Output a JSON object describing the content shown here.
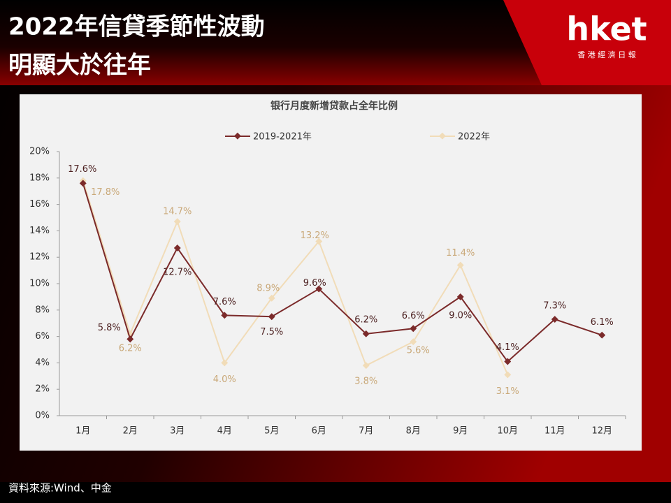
{
  "header": {
    "title_lines": [
      "2022年信貸季節性波動",
      "明顯大於往年"
    ],
    "logo": "hket",
    "logo_sub": "香 港 經 濟 日 報"
  },
  "source": "資料來源:Wind、中金",
  "chart_data": {
    "type": "line",
    "title": "银行月度新增贷款占全年比例",
    "categories": [
      "1月",
      "2月",
      "3月",
      "4月",
      "5月",
      "6月",
      "7月",
      "8月",
      "9月",
      "10月",
      "11月",
      "12月"
    ],
    "series": [
      {
        "name": "2019-2021年",
        "color": "#7b2a2a",
        "values": [
          17.6,
          5.8,
          12.7,
          7.6,
          7.5,
          9.6,
          6.2,
          6.6,
          9.0,
          4.1,
          7.3,
          6.1
        ],
        "value_labels": [
          "17.6%",
          "5.8%",
          "12.7%",
          "7.6%",
          "7.5%",
          "9.6%",
          "6.2%",
          "6.6%",
          "9.0%",
          "4.1%",
          "7.3%",
          "6.1%"
        ]
      },
      {
        "name": "2022年",
        "color": "#f1dcb8",
        "values": [
          17.8,
          6.2,
          14.7,
          4.0,
          8.9,
          13.2,
          3.8,
          5.6,
          11.4,
          3.1,
          null,
          null
        ],
        "value_labels": [
          "17.8%",
          "6.2%",
          "14.7%",
          "4.0%",
          "8.9%",
          "13.2%",
          "3.8%",
          "5.6%",
          "11.4%",
          "3.1%",
          null,
          null
        ]
      }
    ],
    "ylim": [
      0,
      20
    ],
    "yticks": [
      {
        "value": 0,
        "label": "0%"
      },
      {
        "value": 2,
        "label": "2%"
      },
      {
        "value": 4,
        "label": "4%"
      },
      {
        "value": 6,
        "label": "6%"
      },
      {
        "value": 8,
        "label": "8%"
      },
      {
        "value": 10,
        "label": "10%"
      },
      {
        "value": 12,
        "label": "12%"
      },
      {
        "value": 14,
        "label": "14%"
      },
      {
        "value": 16,
        "label": "16%"
      },
      {
        "value": 18,
        "label": "18%"
      },
      {
        "value": 20,
        "label": "20%"
      }
    ]
  }
}
